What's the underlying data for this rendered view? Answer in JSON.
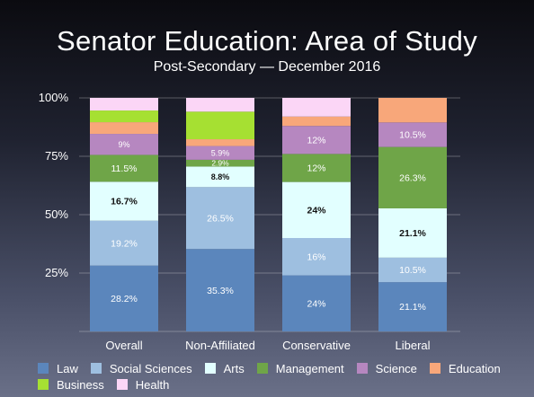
{
  "title": "Senator Education: Area of Study",
  "subtitle": "Post-Secondary — December 2016",
  "chart_data": {
    "type": "bar",
    "stacked": true,
    "categories": [
      "Overall",
      "Non-Affiliated",
      "Conservative",
      "Liberal"
    ],
    "ylim": [
      0,
      100
    ],
    "yticks": [
      "0%",
      "25%",
      "50%",
      "75%",
      "100%"
    ],
    "legend_position": "bottom",
    "grid": true,
    "series": [
      {
        "name": "Law",
        "color": "#5b86bc",
        "values": [
          28.2,
          35.3,
          24,
          21.1
        ],
        "labels": [
          "28.2%",
          "35.3%",
          "24%",
          "21.1%"
        ]
      },
      {
        "name": "Social Sciences",
        "color": "#9ebfe0",
        "values": [
          19.2,
          26.5,
          16,
          10.5
        ],
        "labels": [
          "19.2%",
          "26.5%",
          "16%",
          "10.5%"
        ]
      },
      {
        "name": "Arts",
        "color": "#e2ffff",
        "values": [
          16.7,
          8.8,
          24,
          21.1
        ],
        "labels": [
          "16.7%",
          "8.8%",
          "24%",
          "21.1%"
        ]
      },
      {
        "name": "Management",
        "color": "#6fa548",
        "values": [
          11.5,
          2.9,
          12,
          26.3
        ],
        "labels": [
          "11.5%",
          "2.9%",
          "12%",
          "26.3%"
        ]
      },
      {
        "name": "Science",
        "color": "#b687c0",
        "values": [
          9,
          5.9,
          12,
          10.5
        ],
        "labels": [
          "9%",
          "5.9%",
          "12%",
          "10.5%"
        ]
      },
      {
        "name": "Education",
        "color": "#f8a77a",
        "values": [
          5,
          2.9,
          4,
          10.5
        ],
        "labels": [
          "",
          "",
          "",
          ""
        ]
      },
      {
        "name": "Business",
        "color": "#a6e032",
        "values": [
          5,
          11.8,
          0,
          0
        ],
        "labels": [
          "",
          "",
          "",
          ""
        ]
      },
      {
        "name": "Health",
        "color": "#fbd6f6",
        "values": [
          5.4,
          5.9,
          8,
          0
        ],
        "labels": [
          "",
          "",
          "",
          ""
        ]
      }
    ]
  },
  "legend": {
    "items": [
      {
        "label": "Law",
        "color": "#5b86bc"
      },
      {
        "label": "Social Sciences",
        "color": "#9ebfe0"
      },
      {
        "label": "Arts",
        "color": "#e2ffff"
      },
      {
        "label": "Management",
        "color": "#6fa548"
      },
      {
        "label": "Science",
        "color": "#b687c0"
      },
      {
        "label": "Education",
        "color": "#f8a77a"
      },
      {
        "label": "Business",
        "color": "#a6e032"
      },
      {
        "label": "Health",
        "color": "#fbd6f6"
      }
    ]
  }
}
